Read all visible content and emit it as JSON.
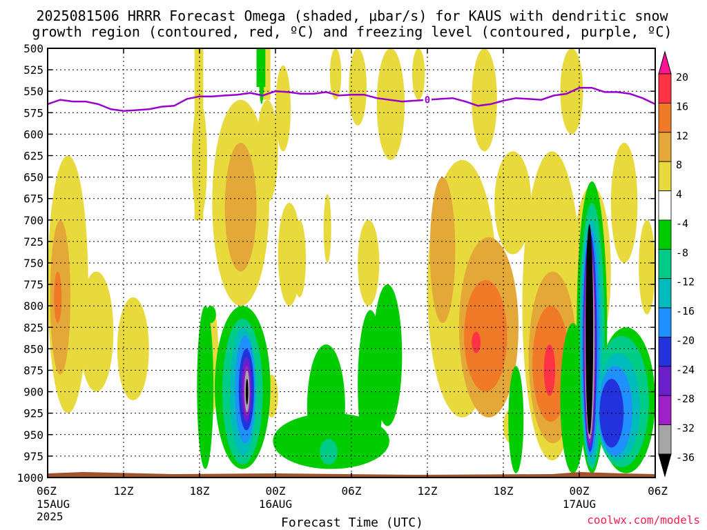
{
  "title": {
    "line1": "2025081506 HRRR Forecast Omega (shaded, μbar/s) for KAUS with dendritic snow",
    "line2": "growth region (contoured, red, ºC) and freezing level (contoured, purple, ºC)"
  },
  "xlabel": "Forecast Time (UTC)",
  "credit": "coolwx.com/models",
  "freezing_label": "0",
  "colors": {
    "freezing_line": "#9900cc",
    "ground": "#a0522d",
    "credit": "#ff1a4a"
  },
  "chart_data": {
    "type": "heatmap",
    "title": "2025081506 HRRR Forecast Omega (shaded, μbar/s) for KAUS with dendritic snow growth region (contoured, red, ºC) and freezing level (contoured, purple, ºC)",
    "xlabel": "Forecast Time (UTC)",
    "ylabel": "",
    "x_hours_range": [
      0,
      48
    ],
    "y_range_hpa": [
      1000,
      500
    ],
    "y_axis_inverted": true,
    "grid": true,
    "x_ticks": [
      {
        "hour": 0,
        "label": "06Z",
        "sub1": "15AUG",
        "sub2": "2025"
      },
      {
        "hour": 6,
        "label": "12Z",
        "sub1": "",
        "sub2": ""
      },
      {
        "hour": 12,
        "label": "18Z",
        "sub1": "",
        "sub2": ""
      },
      {
        "hour": 18,
        "label": "00Z",
        "sub1": "16AUG",
        "sub2": ""
      },
      {
        "hour": 24,
        "label": "06Z",
        "sub1": "",
        "sub2": ""
      },
      {
        "hour": 30,
        "label": "12Z",
        "sub1": "",
        "sub2": ""
      },
      {
        "hour": 36,
        "label": "18Z",
        "sub1": "",
        "sub2": ""
      },
      {
        "hour": 42,
        "label": "00Z",
        "sub1": "17AUG",
        "sub2": ""
      },
      {
        "hour": 48,
        "label": "06Z",
        "sub1": "",
        "sub2": ""
      }
    ],
    "y_ticks": [
      500,
      525,
      550,
      575,
      600,
      625,
      650,
      675,
      700,
      725,
      750,
      775,
      800,
      825,
      850,
      875,
      900,
      925,
      950,
      975,
      1000
    ],
    "colorbar": {
      "labels": [
        "20",
        "16",
        "12",
        "8",
        "4",
        "-4",
        "-8",
        "-12",
        "-16",
        "-20",
        "-24",
        "-28",
        "-32",
        "-36"
      ],
      "bins": [
        {
          "from": 16,
          "to": 20,
          "color": "#ff3344"
        },
        {
          "from": 12,
          "to": 16,
          "color": "#f07a28"
        },
        {
          "from": 8,
          "to": 12,
          "color": "#e4a838"
        },
        {
          "from": 4,
          "to": 8,
          "color": "#e8d93c"
        },
        {
          "from": -4,
          "to": 4,
          "color": "#ffffff"
        },
        {
          "from": -8,
          "to": -4,
          "color": "#00cc00"
        },
        {
          "from": -12,
          "to": -8,
          "color": "#00cc88"
        },
        {
          "from": -16,
          "to": -12,
          "color": "#00bbbb"
        },
        {
          "from": -20,
          "to": -16,
          "color": "#1e90ff"
        },
        {
          "from": -24,
          "to": -20,
          "color": "#2233dd"
        },
        {
          "from": -28,
          "to": -24,
          "color": "#6a1fc8"
        },
        {
          "from": -32,
          "to": -28,
          "color": "#a020c8"
        },
        {
          "from": -36,
          "to": -32,
          "color": "#a6a6a6"
        }
      ],
      "top_arrow_color": "#ff1493",
      "bottom_arrow_color": "#000000"
    },
    "freezing_level": {
      "label": "0",
      "hours": [
        0,
        1,
        2,
        3,
        4,
        5,
        6,
        7,
        8,
        9,
        10,
        11,
        12,
        13,
        14,
        15,
        16,
        17,
        18,
        19,
        20,
        21,
        22,
        23,
        24,
        25,
        26,
        27,
        28,
        29,
        30,
        31,
        32,
        33,
        34,
        35,
        36,
        37,
        38,
        39,
        40,
        41,
        42,
        43,
        44,
        45,
        46,
        47,
        48
      ],
      "pressure_hpa": [
        565,
        560,
        562,
        562,
        565,
        571,
        573,
        572,
        571,
        568,
        567,
        559,
        556,
        556,
        555,
        554,
        552,
        555,
        550,
        551,
        553,
        553,
        551,
        555,
        554,
        554,
        558,
        560,
        562,
        561,
        560,
        559,
        558,
        562,
        567,
        565,
        561,
        558,
        559,
        560,
        555,
        553,
        546,
        546,
        551,
        551,
        553,
        558,
        565
      ]
    },
    "omega_regions": [
      {
        "bin": "4 to 8",
        "approx_hours": [
          0,
          3
        ],
        "approx_hpa": [
          625,
          925
        ]
      },
      {
        "bin": "4 to 8",
        "approx_hours": [
          11.5,
          12.5
        ],
        "approx_hpa": [
          500,
          700
        ]
      },
      {
        "bin": "8 to 12",
        "approx_hours": [
          13.5,
          17
        ],
        "approx_hpa": [
          600,
          760
        ]
      },
      {
        "bin": "4 to 8",
        "approx_hours": [
          30,
          35
        ],
        "approx_hpa": [
          620,
          930
        ]
      },
      {
        "bin": "16 to 20",
        "approx_hours": [
          33.5,
          34.2
        ],
        "approx_hpa": [
          830,
          855
        ]
      },
      {
        "bin": "16 to 20",
        "approx_hours": [
          39.2,
          40.1
        ],
        "approx_hpa": [
          845,
          905
        ]
      },
      {
        "bin": "-36 and below",
        "approx_hours": [
          42.2,
          43.2
        ],
        "approx_hpa": [
          710,
          925
        ]
      },
      {
        "bin": "-32 to -28",
        "approx_hours": [
          15.5,
          16.6
        ],
        "approx_hpa": [
          860,
          930
        ]
      }
    ]
  }
}
